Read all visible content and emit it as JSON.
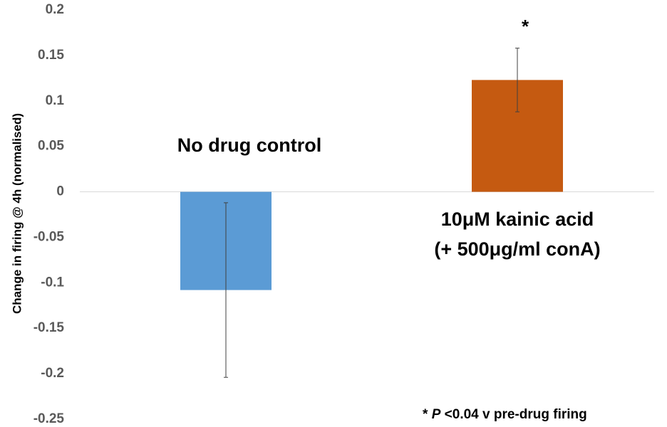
{
  "chart_data": {
    "type": "bar",
    "ylabel": "Change in firing @ 4h (normalised)",
    "ylim": [
      -0.25,
      0.2
    ],
    "yticks": [
      "0.2",
      "0.15",
      "0.1",
      "0.05",
      "0",
      "-0.05",
      "-0.1",
      "-0.15",
      "-0.2",
      "-0.25"
    ],
    "grid": false,
    "categories": [
      {
        "line1": "No drug control",
        "line2": ""
      },
      {
        "line1": "10μM kainic acid",
        "line2": "(+ 500μg/ml conA)"
      }
    ],
    "values": [
      -0.108,
      0.123
    ],
    "error": [
      0.096,
      0.035
    ],
    "colors": [
      "#5b9bd5",
      "#c55a11"
    ],
    "significance": [
      "",
      "*"
    ],
    "footnote": {
      "star": "* ",
      "p": "P",
      "rest": " <0.04 v pre-drug firing"
    }
  }
}
